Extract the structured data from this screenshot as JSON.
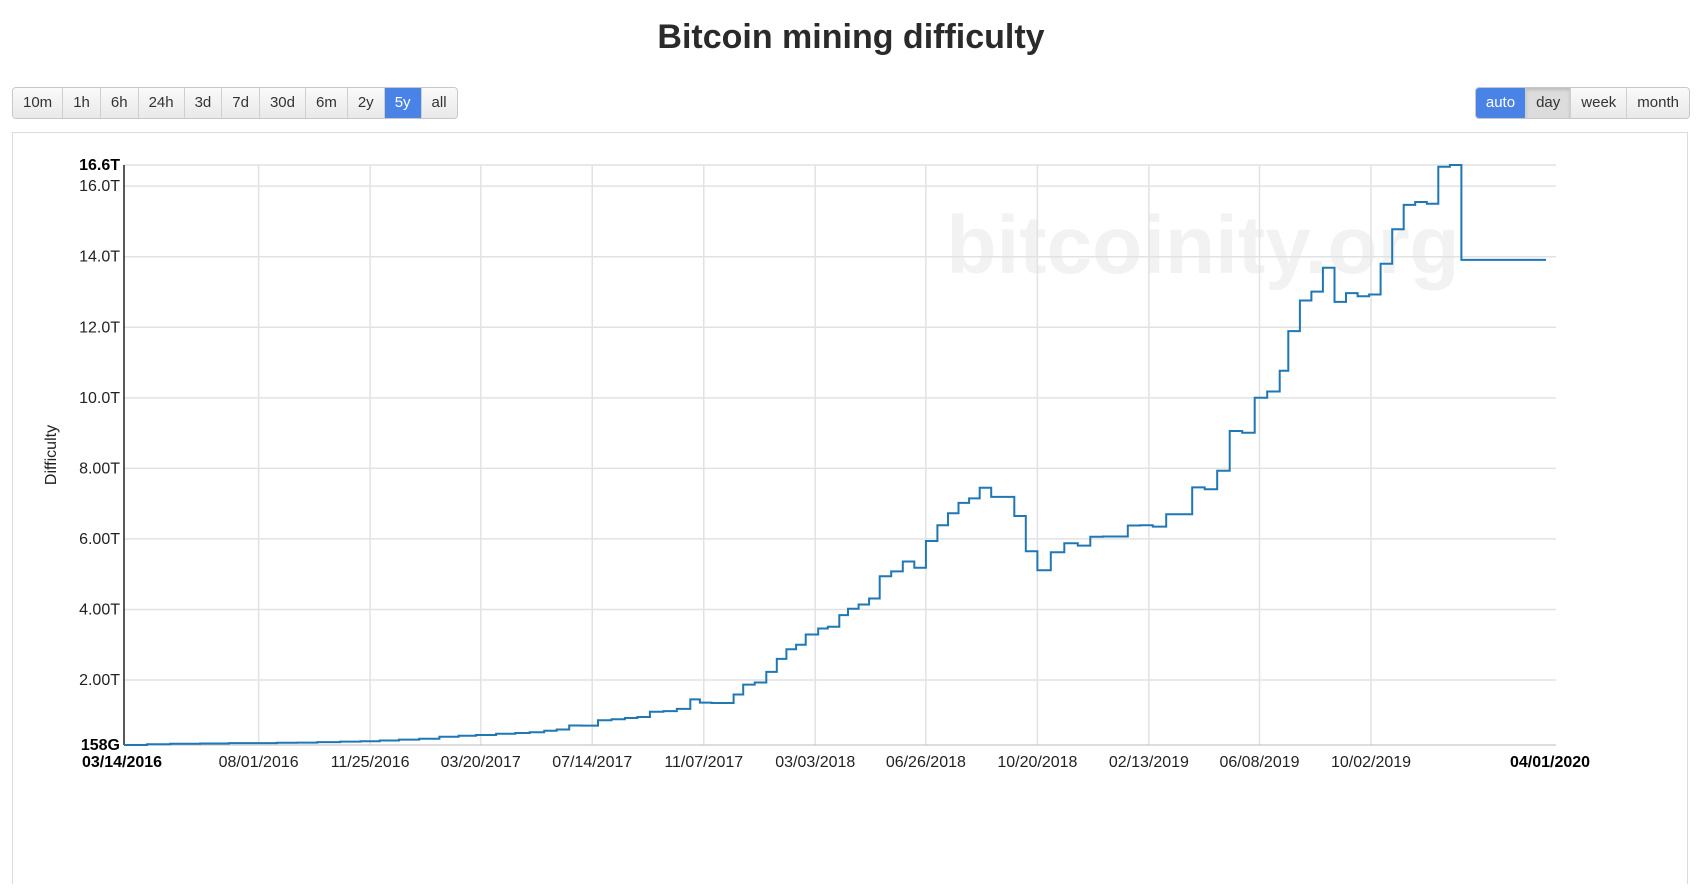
{
  "title": "Bitcoin mining difficulty",
  "range_buttons": [
    {
      "label": "10m",
      "active": false
    },
    {
      "label": "1h",
      "active": false
    },
    {
      "label": "6h",
      "active": false
    },
    {
      "label": "24h",
      "active": false
    },
    {
      "label": "3d",
      "active": false
    },
    {
      "label": "7d",
      "active": false
    },
    {
      "label": "30d",
      "active": false
    },
    {
      "label": "6m",
      "active": false
    },
    {
      "label": "2y",
      "active": false
    },
    {
      "label": "5y",
      "active": true
    },
    {
      "label": "all",
      "active": false
    }
  ],
  "group_buttons": [
    {
      "label": "auto",
      "state": "active"
    },
    {
      "label": "day",
      "state": "pressed"
    },
    {
      "label": "week",
      "state": "normal"
    },
    {
      "label": "month",
      "state": "normal"
    }
  ],
  "watermark": "bitcoinity.org",
  "colors": {
    "line": "#1f77b4",
    "active_button": "#4a83e6",
    "grid": "#e2e2e2"
  },
  "chart_data": {
    "type": "line",
    "title": "Bitcoin mining difficulty",
    "xlabel": "",
    "ylabel": "Difficulty",
    "ylim": [
      0.158,
      16.6
    ],
    "ytick_values": [
      0.158,
      2,
      4,
      6,
      8,
      10,
      12,
      14,
      16,
      16.6
    ],
    "ytick_labels": [
      "158G",
      "2.00T",
      "4.00T",
      "6.00T",
      "8.00T",
      "10.0T",
      "12.0T",
      "14.0T",
      "16.0T",
      "16.6T"
    ],
    "ytick_bold": [
      "158G",
      "16.6T"
    ],
    "xlim": [
      "2016-03-14",
      "2020-04-01"
    ],
    "xtick_labels": [
      "03/14/2016",
      "08/01/2016",
      "11/25/2016",
      "03/20/2017",
      "07/14/2017",
      "11/07/2017",
      "03/03/2018",
      "06/26/2018",
      "10/20/2018",
      "02/13/2019",
      "06/08/2019",
      "10/02/2019",
      "04/01/2020"
    ],
    "xtick_dates": [
      "2016-03-14",
      "2016-08-01",
      "2016-11-25",
      "2017-03-20",
      "2017-07-14",
      "2017-11-07",
      "2018-03-03",
      "2018-06-26",
      "2018-10-20",
      "2019-02-13",
      "2019-06-08",
      "2019-10-02",
      "2020-04-01"
    ],
    "xtick_bold": [
      "03/14/2016",
      "04/01/2020"
    ],
    "grid": true,
    "step": true,
    "series": [
      {
        "x": [
          "2016-03-14",
          "2016-04-07",
          "2016-05-01",
          "2016-06-01",
          "2016-07-01",
          "2016-08-01",
          "2016-08-20",
          "2016-09-10",
          "2016-10-01",
          "2016-10-25",
          "2016-11-15",
          "2016-12-05",
          "2016-12-25",
          "2017-01-15",
          "2017-02-05",
          "2017-02-25",
          "2017-03-15",
          "2017-04-05",
          "2017-04-25",
          "2017-05-10",
          "2017-05-25",
          "2017-06-07",
          "2017-06-20",
          "2017-07-03",
          "2017-07-20",
          "2017-08-03",
          "2017-08-17",
          "2017-08-30",
          "2017-09-12",
          "2017-09-26",
          "2017-10-10",
          "2017-10-24",
          "2017-11-03",
          "2017-11-15",
          "2017-12-08",
          "2017-12-18",
          "2017-12-30",
          "2018-01-11",
          "2018-01-22",
          "2018-02-01",
          "2018-02-11",
          "2018-02-21",
          "2018-03-06",
          "2018-03-16",
          "2018-03-28",
          "2018-04-06",
          "2018-04-17",
          "2018-04-28",
          "2018-05-09",
          "2018-05-21",
          "2018-06-02",
          "2018-06-14",
          "2018-06-26",
          "2018-07-08",
          "2018-07-19",
          "2018-07-30",
          "2018-08-10",
          "2018-08-21",
          "2018-09-02",
          "2018-09-14",
          "2018-09-26",
          "2018-10-08",
          "2018-10-20",
          "2018-11-03",
          "2018-11-17",
          "2018-12-01",
          "2018-12-14",
          "2018-12-27",
          "2019-01-09",
          "2019-01-22",
          "2019-02-04",
          "2019-02-17",
          "2019-03-03",
          "2019-03-17",
          "2019-03-30",
          "2019-04-12",
          "2019-04-25",
          "2019-05-08",
          "2019-05-21",
          "2019-06-03",
          "2019-06-16",
          "2019-06-29",
          "2019-07-08",
          "2019-07-20",
          "2019-08-01",
          "2019-08-13",
          "2019-08-25",
          "2019-09-06",
          "2019-09-18",
          "2019-09-30",
          "2019-10-12",
          "2019-10-24",
          "2019-11-05",
          "2019-11-17",
          "2019-11-29",
          "2019-12-11",
          "2019-12-23",
          "2020-01-04",
          "2020-01-16",
          "2020-01-28",
          "2020-02-09",
          "2020-02-21",
          "2020-03-04",
          "2020-03-10",
          "2020-03-26",
          "2020-04-01"
        ],
        "y": [
          0.158,
          0.178,
          0.194,
          0.2,
          0.212,
          0.213,
          0.22,
          0.226,
          0.241,
          0.254,
          0.265,
          0.286,
          0.31,
          0.337,
          0.393,
          0.423,
          0.441,
          0.475,
          0.499,
          0.52,
          0.56,
          0.596,
          0.711,
          0.708,
          0.86,
          0.888,
          0.923,
          0.953,
          1.1,
          1.12,
          1.18,
          1.45,
          1.36,
          1.35,
          1.59,
          1.87,
          1.93,
          2.23,
          2.6,
          2.87,
          3.0,
          3.29,
          3.46,
          3.51,
          3.84,
          4.02,
          4.14,
          4.31,
          4.94,
          5.08,
          5.36,
          5.18,
          5.94,
          6.39,
          6.73,
          7.02,
          7.15,
          7.45,
          7.19,
          7.19,
          6.65,
          5.65,
          5.11,
          5.62,
          5.88,
          5.81,
          6.06,
          6.07,
          6.07,
          6.38,
          6.39,
          6.35,
          6.7,
          6.7,
          7.46,
          7.41,
          7.93,
          9.06,
          9.01,
          10.0,
          10.18,
          10.77,
          11.89,
          12.76,
          13.01,
          13.69,
          12.72,
          12.97,
          12.88,
          12.93,
          13.8,
          14.78,
          15.47,
          15.55,
          15.5,
          16.55,
          16.6,
          13.91,
          13.91,
          13.91,
          13.91,
          13.91,
          13.91,
          13.91,
          13.91,
          13.91
        ]
      }
    ]
  }
}
